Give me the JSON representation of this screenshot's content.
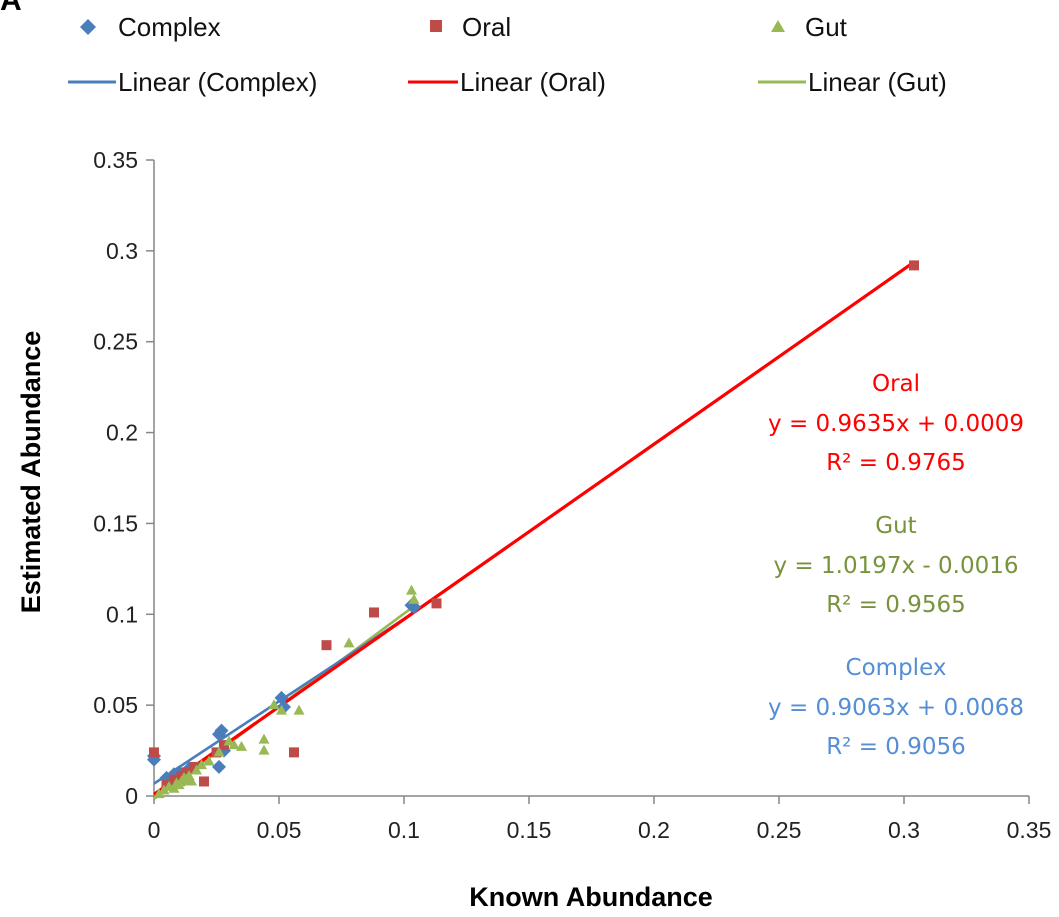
{
  "panel_label": "A",
  "legend": {
    "series": [
      {
        "label": "Complex",
        "marker": "diamond",
        "color": "#4a7ebb"
      },
      {
        "label": "Oral",
        "marker": "square",
        "color": "#be4b48"
      },
      {
        "label": "Gut",
        "marker": "triangle",
        "color": "#98b954"
      }
    ],
    "trendlines": [
      {
        "label": "Linear (Complex)",
        "color": "#4a7ebb"
      },
      {
        "label": "Linear (Oral)",
        "color": "#ff0000"
      },
      {
        "label": "Linear (Gut)",
        "color": "#98b954"
      }
    ]
  },
  "annotations": [
    {
      "name": "Oral",
      "equation": "y = 0.9635x + 0.0009",
      "r2": "R² = 0.9765",
      "color": "#ff0000"
    },
    {
      "name": "Gut",
      "equation": "y = 1.0197x - 0.0016",
      "r2": "R² = 0.9565",
      "color": "#77933c"
    },
    {
      "name": "Complex",
      "equation": "y = 0.9063x + 0.0068",
      "r2": "R² = 0.9056",
      "color": "#558ed5"
    }
  ],
  "chart_data": {
    "type": "scatter",
    "title": "",
    "xlabel": "Known Abundance",
    "ylabel": "Estimated Abundance",
    "xlim": [
      0,
      0.35
    ],
    "ylim": [
      0,
      0.35
    ],
    "x_ticks": [
      "0",
      "0.05",
      "0.1",
      "0.15",
      "0.2",
      "0.25",
      "0.3",
      "0.35"
    ],
    "y_ticks": [
      "0",
      "0.05",
      "0.1",
      "0.15",
      "0.2",
      "0.25",
      "0.3",
      "0.35"
    ],
    "grid": false,
    "legend_position": "top",
    "series": [
      {
        "name": "Complex",
        "color": "#4a7ebb",
        "marker": "diamond",
        "points": [
          [
            0.0,
            0.02
          ],
          [
            0.0,
            0.022
          ],
          [
            0.005,
            0.01
          ],
          [
            0.006,
            0.008
          ],
          [
            0.008,
            0.012
          ],
          [
            0.01,
            0.013
          ],
          [
            0.012,
            0.009
          ],
          [
            0.014,
            0.015
          ],
          [
            0.026,
            0.016
          ],
          [
            0.026,
            0.034
          ],
          [
            0.027,
            0.036
          ],
          [
            0.028,
            0.025
          ],
          [
            0.051,
            0.054
          ],
          [
            0.052,
            0.049
          ],
          [
            0.103,
            0.105
          ],
          [
            0.104,
            0.104
          ]
        ],
        "trendline": {
          "label": "Linear (Complex)",
          "slope": 0.9063,
          "intercept": 0.0068,
          "x_range": [
            0,
            0.104
          ],
          "color": "#4a7ebb"
        }
      },
      {
        "name": "Oral",
        "color": "#be4b48",
        "marker": "square",
        "points": [
          [
            0.0,
            0.024
          ],
          [
            0.005,
            0.006
          ],
          [
            0.008,
            0.009
          ],
          [
            0.011,
            0.011
          ],
          [
            0.013,
            0.013
          ],
          [
            0.016,
            0.016
          ],
          [
            0.02,
            0.008
          ],
          [
            0.025,
            0.024
          ],
          [
            0.028,
            0.028
          ],
          [
            0.056,
            0.024
          ],
          [
            0.069,
            0.083
          ],
          [
            0.088,
            0.101
          ],
          [
            0.113,
            0.106
          ],
          [
            0.304,
            0.292
          ]
        ],
        "trendline": {
          "label": "Linear (Oral)",
          "slope": 0.9635,
          "intercept": 0.0009,
          "x_range": [
            0,
            0.304
          ],
          "color": "#ff0000"
        }
      },
      {
        "name": "Gut",
        "color": "#98b954",
        "marker": "triangle",
        "points": [
          [
            0.002,
            0.001
          ],
          [
            0.004,
            0.003
          ],
          [
            0.006,
            0.005
          ],
          [
            0.008,
            0.004
          ],
          [
            0.009,
            0.007
          ],
          [
            0.01,
            0.006
          ],
          [
            0.011,
            0.008
          ],
          [
            0.012,
            0.01
          ],
          [
            0.013,
            0.009
          ],
          [
            0.014,
            0.011
          ],
          [
            0.015,
            0.008
          ],
          [
            0.017,
            0.014
          ],
          [
            0.019,
            0.017
          ],
          [
            0.022,
            0.019
          ],
          [
            0.026,
            0.024
          ],
          [
            0.03,
            0.03
          ],
          [
            0.032,
            0.028
          ],
          [
            0.035,
            0.027
          ],
          [
            0.044,
            0.031
          ],
          [
            0.044,
            0.025
          ],
          [
            0.048,
            0.05
          ],
          [
            0.051,
            0.047
          ],
          [
            0.058,
            0.047
          ],
          [
            0.078,
            0.084
          ],
          [
            0.103,
            0.113
          ],
          [
            0.104,
            0.108
          ]
        ],
        "trendline": {
          "label": "Linear (Gut)",
          "slope": 1.0197,
          "intercept": -0.0016,
          "x_range": [
            0,
            0.104
          ],
          "color": "#98b954"
        }
      }
    ]
  }
}
